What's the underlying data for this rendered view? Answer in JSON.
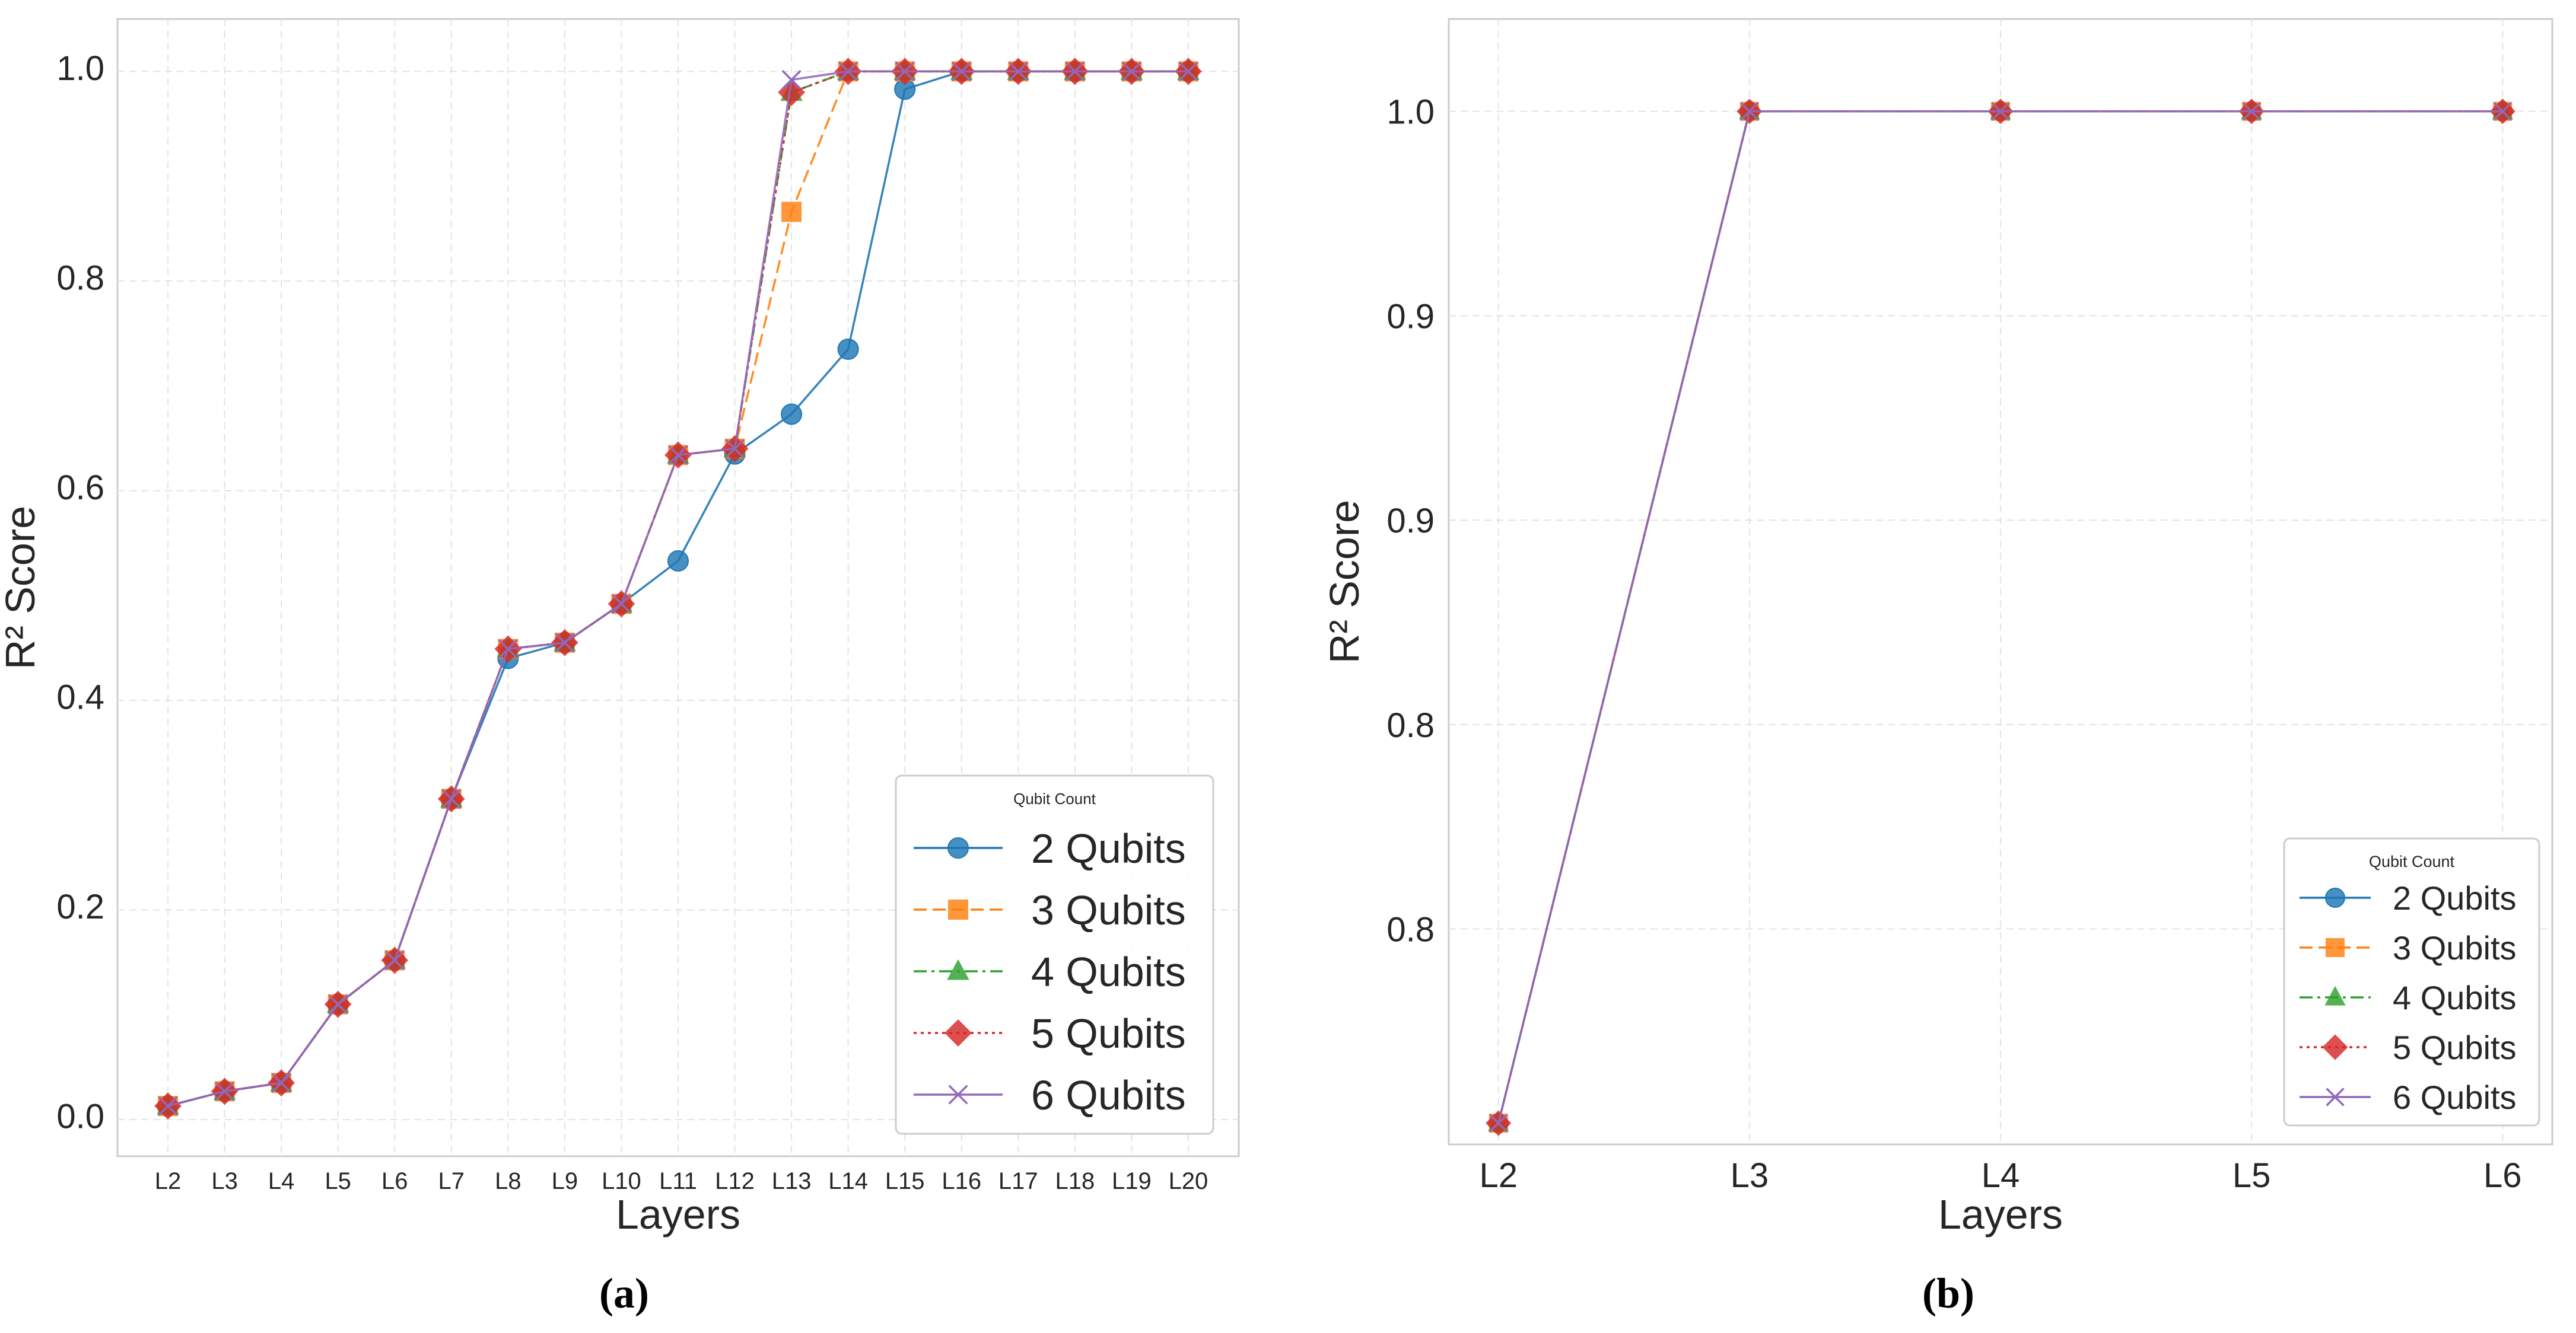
{
  "chart_data": [
    {
      "type": "line",
      "panel": "a",
      "xlabel": "Layers",
      "ylabel": "R² Score",
      "categories": [
        "L2",
        "L3",
        "L4",
        "L5",
        "L6",
        "L7",
        "L8",
        "L9",
        "L10",
        "L11",
        "L12",
        "L13",
        "L14",
        "L15",
        "L16",
        "L17",
        "L18",
        "L19",
        "L20"
      ],
      "ylim": [
        -0.035,
        1.05
      ],
      "yticks": [
        0.0,
        0.2,
        0.4,
        0.6,
        0.8,
        1.0
      ],
      "ytick_labels": [
        "0.0",
        "0.2",
        "0.4",
        "0.6",
        "0.8",
        "1.0"
      ],
      "grid": true,
      "legend": {
        "title": "Qubit Count",
        "position": "lower-right"
      },
      "series": [
        {
          "name": "2 Qubits",
          "color": "#1f77b4",
          "marker": "circle",
          "linestyle": "solid",
          "values": [
            0.013,
            0.027,
            0.035,
            0.11,
            0.152,
            0.306,
            0.44,
            0.455,
            0.492,
            0.533,
            0.635,
            0.673,
            0.735,
            0.983,
            1.0,
            1.0,
            1.0,
            1.0,
            1.0
          ]
        },
        {
          "name": "3 Qubits",
          "color": "#ff7f0e",
          "marker": "square",
          "linestyle": "dashed",
          "values": [
            0.013,
            0.027,
            0.035,
            0.11,
            0.152,
            0.306,
            0.449,
            0.455,
            0.492,
            0.634,
            0.64,
            0.866,
            1.0,
            1.0,
            1.0,
            1.0,
            1.0,
            1.0,
            1.0
          ]
        },
        {
          "name": "4 Qubits",
          "color": "#2ca02c",
          "marker": "triangle",
          "linestyle": "dashdot",
          "values": [
            0.013,
            0.027,
            0.035,
            0.11,
            0.152,
            0.306,
            0.449,
            0.455,
            0.492,
            0.634,
            0.64,
            0.98,
            1.0,
            1.0,
            1.0,
            1.0,
            1.0,
            1.0,
            1.0
          ]
        },
        {
          "name": "5 Qubits",
          "color": "#d62728",
          "marker": "diamond",
          "linestyle": "dotted",
          "values": [
            0.013,
            0.027,
            0.035,
            0.11,
            0.152,
            0.306,
            0.449,
            0.455,
            0.492,
            0.634,
            0.64,
            0.98,
            1.0,
            1.0,
            1.0,
            1.0,
            1.0,
            1.0,
            1.0
          ]
        },
        {
          "name": "6 Qubits",
          "color": "#9467bd",
          "marker": "x",
          "linestyle": "solid",
          "values": [
            0.013,
            0.027,
            0.035,
            0.11,
            0.152,
            0.306,
            0.449,
            0.455,
            0.492,
            0.634,
            0.64,
            0.992,
            1.0,
            1.0,
            1.0,
            1.0,
            1.0,
            1.0,
            1.0
          ]
        }
      ]
    },
    {
      "type": "line",
      "panel": "b",
      "xlabel": "Layers",
      "ylabel": "R² Score",
      "categories": [
        "L2",
        "L3",
        "L4",
        "L5",
        "L6"
      ],
      "ylim": [
        0.7473,
        1.0226
      ],
      "yticks": [
        0.8,
        0.85,
        0.9,
        0.95,
        1.0
      ],
      "ytick_labels": [
        "0.8",
        "0.8",
        "0.9",
        "0.9",
        "1.0"
      ],
      "grid": true,
      "legend": {
        "title": "Qubit Count",
        "position": "lower-right"
      },
      "series": [
        {
          "name": "2 Qubits",
          "color": "#1f77b4",
          "marker": "circle",
          "linestyle": "solid",
          "values": [
            0.7525,
            1.0,
            1.0,
            1.0,
            1.0
          ]
        },
        {
          "name": "3 Qubits",
          "color": "#ff7f0e",
          "marker": "square",
          "linestyle": "dashed",
          "values": [
            0.7525,
            1.0,
            1.0,
            1.0,
            1.0
          ]
        },
        {
          "name": "4 Qubits",
          "color": "#2ca02c",
          "marker": "triangle",
          "linestyle": "dashdot",
          "values": [
            0.7525,
            1.0,
            1.0,
            1.0,
            1.0
          ]
        },
        {
          "name": "5 Qubits",
          "color": "#d62728",
          "marker": "diamond",
          "linestyle": "dotted",
          "values": [
            0.7525,
            1.0,
            1.0,
            1.0,
            1.0
          ]
        },
        {
          "name": "6 Qubits",
          "color": "#9467bd",
          "marker": "x",
          "linestyle": "solid",
          "values": [
            0.7525,
            1.0,
            1.0,
            1.0,
            1.0
          ]
        }
      ]
    }
  ],
  "captions": {
    "a": "(a)",
    "b": "(b)"
  }
}
